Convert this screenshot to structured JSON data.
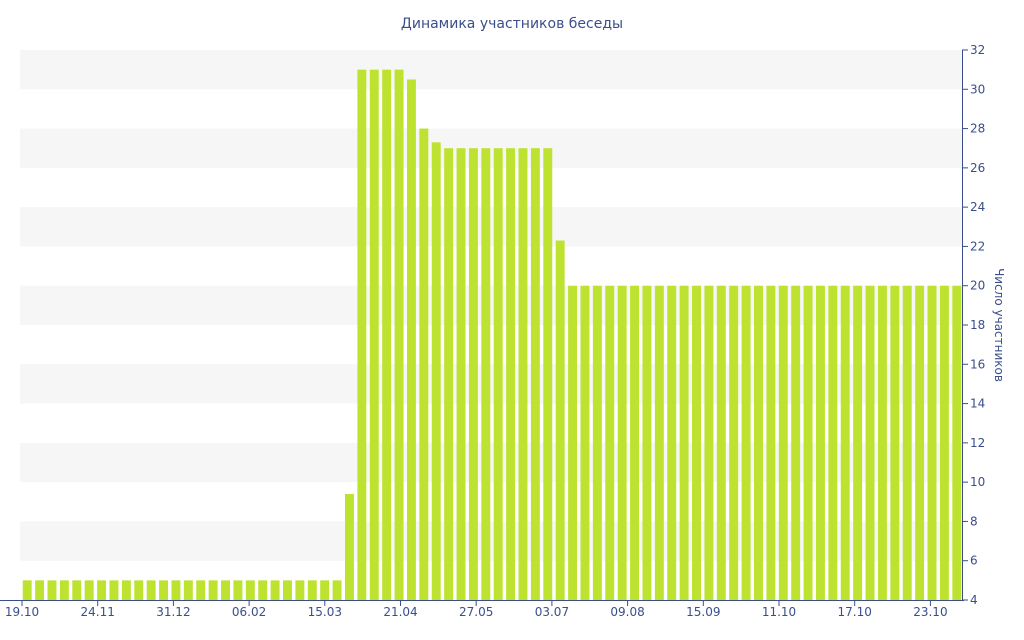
{
  "chart_data": {
    "type": "bar",
    "title": "Динамика участников беседы",
    "xlabel": "",
    "ylabel": "Число участников",
    "y_axis_side": "right",
    "ylim": [
      4,
      32
    ],
    "y_ticks": [
      4,
      6,
      8,
      10,
      12,
      14,
      16,
      18,
      20,
      22,
      24,
      26,
      28,
      30,
      32
    ],
    "x_tick_labels": [
      "19.10",
      "24.11",
      "31.12",
      "06.02",
      "15.03",
      "21.04",
      "27.05",
      "03.07",
      "09.08",
      "15.09",
      "11.10",
      "17.10",
      "23.10"
    ],
    "values": [
      5,
      5,
      5,
      5,
      5,
      5,
      5,
      5,
      5,
      5,
      5,
      5,
      5,
      5,
      5,
      5,
      5,
      5,
      5,
      5,
      5,
      5,
      5,
      5,
      5,
      5,
      9.4,
      31,
      31,
      31,
      31,
      30.5,
      28,
      27.3,
      27,
      27,
      27,
      27,
      27,
      27,
      27,
      27,
      27,
      22.3,
      20,
      20,
      20,
      20,
      20,
      20,
      20,
      20,
      20,
      20,
      20,
      20,
      20,
      20,
      20,
      20,
      20,
      20,
      20,
      20,
      20,
      20,
      20,
      20,
      20,
      20,
      20,
      20,
      20,
      20,
      20,
      20
    ],
    "grid": "horizontal bands",
    "colors": {
      "bar": "#bde22f",
      "band": "#f6f6f6",
      "axis": "#3a4f8a",
      "text": "#3a4f8a"
    }
  }
}
